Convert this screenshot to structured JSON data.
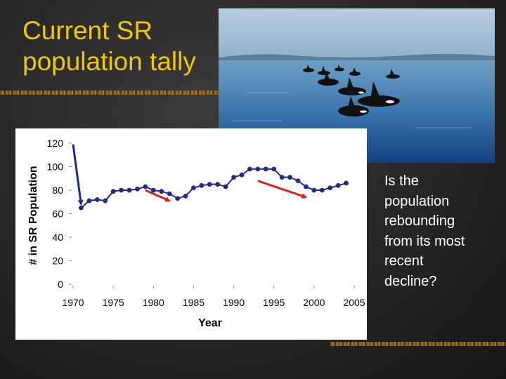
{
  "slide": {
    "title_lines": [
      "Current SR",
      "population tally"
    ],
    "question_lines": [
      "Is the",
      "population",
      "rebounding",
      "from its most",
      "recent",
      "decline?"
    ]
  },
  "photo": {
    "subject": "orca pod swimming in open water",
    "icon": "orca-photo"
  },
  "colors": {
    "title": "#f0c800",
    "text": "#ffffff",
    "series": "#1f2a8c",
    "arrow_blue": "#1f2a8c",
    "arrow_red": "#e0201c"
  },
  "chart_data": {
    "type": "line",
    "title": "",
    "xlabel": "Year",
    "ylabel": "# in SR Population",
    "xlim": [
      1970,
      2005
    ],
    "ylim": [
      0,
      120
    ],
    "xticks": [
      1970,
      1975,
      1980,
      1985,
      1990,
      1995,
      2000,
      2005
    ],
    "yticks": [
      0,
      20,
      40,
      60,
      80,
      100,
      120
    ],
    "grid": false,
    "legend": "none",
    "series": [
      {
        "x": [
          1971,
          1972,
          1973,
          1974,
          1975,
          1976,
          1977,
          1978,
          1979,
          1980,
          1981,
          1982,
          1983,
          1984,
          1985,
          1986,
          1987,
          1988,
          1989,
          1990,
          1991,
          1992,
          1993,
          1994,
          1995,
          1996,
          1997,
          1998,
          1999,
          2000,
          2001,
          2002,
          2003,
          2004
        ],
        "y": [
          65,
          71,
          72,
          71,
          79,
          80,
          80,
          81,
          83,
          80,
          79,
          77,
          73,
          75,
          82,
          84,
          85,
          85,
          83,
          91,
          93,
          98,
          98,
          98,
          98,
          91,
          91,
          88,
          83,
          80,
          80,
          82,
          84,
          86
        ]
      }
    ],
    "annotations": [
      {
        "type": "arrow",
        "color": "blue",
        "from": [
          1970,
          119
        ],
        "to": [
          1971,
          68
        ]
      },
      {
        "type": "arrow",
        "color": "red",
        "from": [
          1979,
          80
        ],
        "to": [
          1982,
          71
        ]
      },
      {
        "type": "arrow",
        "color": "red",
        "from": [
          1993,
          88
        ],
        "to": [
          1999,
          74
        ]
      }
    ]
  }
}
